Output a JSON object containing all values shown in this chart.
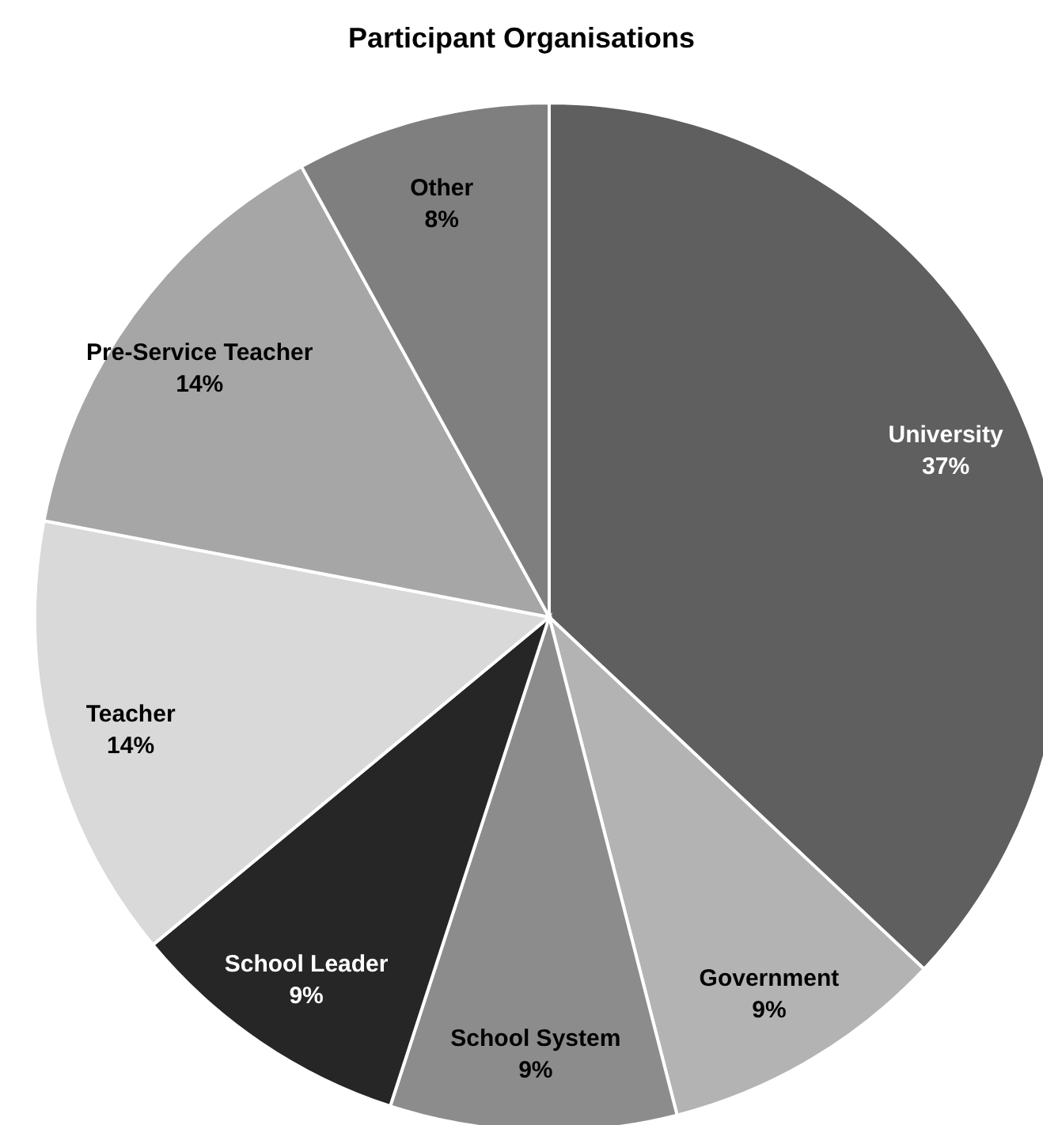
{
  "chart_data": {
    "type": "pie",
    "title": "Participant Organisations",
    "categories": [
      "University",
      "Government",
      "School System",
      "School Leader",
      "Teacher",
      "Pre-Service Teacher",
      "Other"
    ],
    "values": [
      37,
      9,
      9,
      9,
      14,
      14,
      8
    ],
    "value_labels": [
      "37%",
      "9%",
      "9%",
      "9%",
      "14%",
      "14%",
      "8%"
    ],
    "colors": [
      "#5f5f5f",
      "#b3b3b3",
      "#8c8c8c",
      "#262626",
      "#d9d9d9",
      "#a6a6a6",
      "#7f7f7f"
    ]
  }
}
